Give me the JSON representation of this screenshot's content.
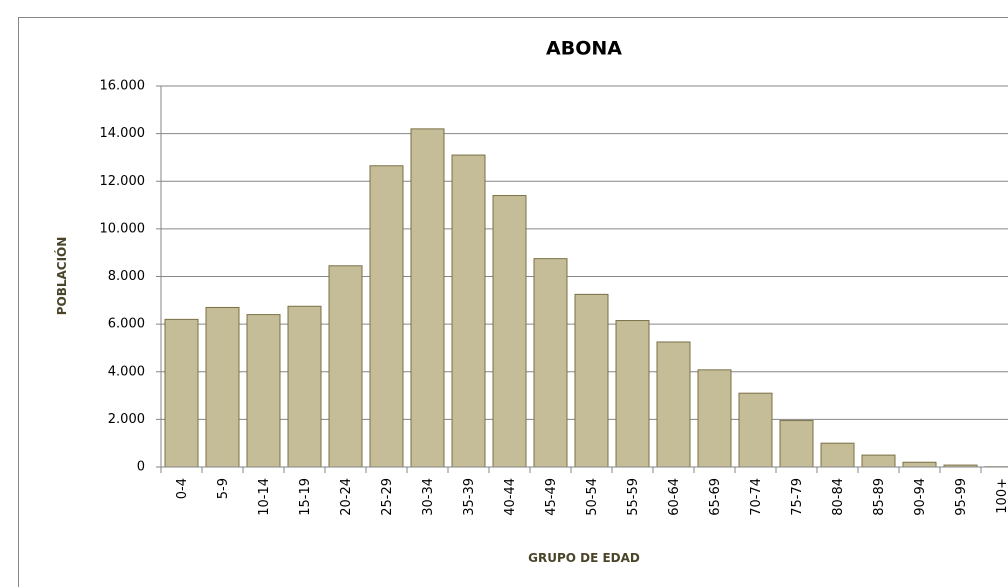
{
  "chart_data": {
    "type": "bar",
    "title": "ABONA",
    "x_label": "GRUPO DE EDAD",
    "y_label": "POBLACIÓN",
    "categories": [
      "0-4",
      "5-9",
      "10-14",
      "15-19",
      "20-24",
      "25-29",
      "30-34",
      "35-39",
      "40-44",
      "45-49",
      "50-54",
      "55-59",
      "60-64",
      "65-69",
      "70-74",
      "75-79",
      "80-84",
      "85-89",
      "90-94",
      "95-99",
      "100+"
    ],
    "values": [
      6200,
      6700,
      6400,
      6750,
      8450,
      12650,
      14200,
      13100,
      11400,
      8750,
      7250,
      6150,
      5250,
      4080,
      3100,
      1950,
      1000,
      500,
      200,
      80,
      10
    ],
    "color": "#c4bd97",
    "ylim": [
      0,
      16000
    ],
    "yticks": [
      0,
      {
        "value": 2000,
        "label": "2.000"
      },
      {
        "value": 4000,
        "label": "4.000"
      },
      {
        "value": 6000,
        "label": "6.000"
      },
      {
        "value": 8000,
        "label": "8.000"
      },
      {
        "value": 10000,
        "label": "10.000"
      },
      {
        "value": 12000,
        "label": "12.000"
      },
      {
        "value": 14000,
        "label": "14.000"
      },
      {
        "value": 16000,
        "label": "16.000"
      }
    ],
    "grid": true
  }
}
